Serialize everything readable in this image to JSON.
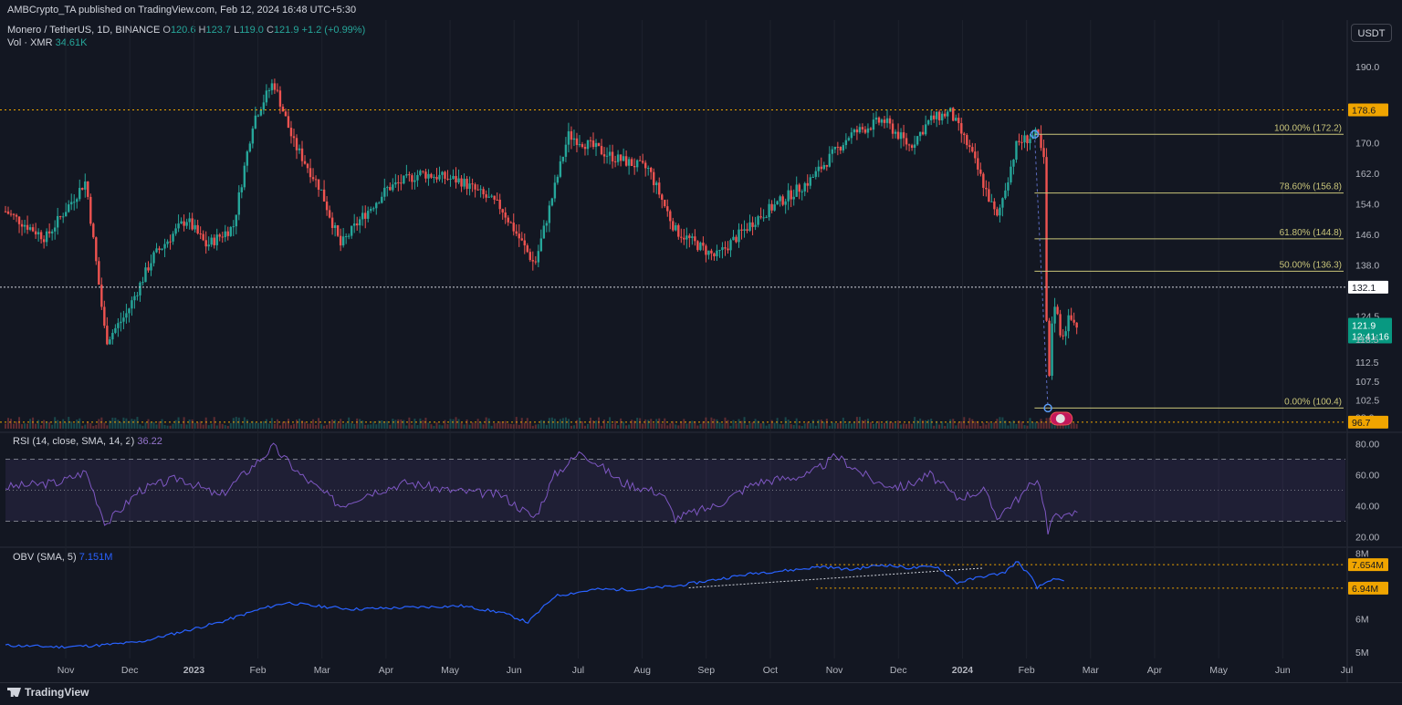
{
  "header": {
    "publisher": "AMBCrypto_TA published on TradingView.com, Feb 12, 2024 16:48 UTC+5:30"
  },
  "legend": {
    "symbol": "Monero / TetherUS, 1D, BINANCE",
    "open_label": "O",
    "open": "120.6",
    "high_label": "H",
    "high": "123.7",
    "low_label": "L",
    "low": "119.0",
    "close_label": "C",
    "close": "121.9",
    "change": "+1.2 (+0.99%)",
    "vol_label": "Vol · XMR",
    "vol_value": "34.61K"
  },
  "currency_button": "USDT",
  "rsi_legend": {
    "label": "RSI (14, close, SMA, 14, 2)",
    "value": "36.22"
  },
  "obv_legend": {
    "label": "OBV (SMA, 5)",
    "value": "7.151M"
  },
  "branding": "TradingView",
  "colors": {
    "up": "#26a69a",
    "down": "#ef5350",
    "rsi": "#7e57c2",
    "obv": "#2962ff",
    "fib": "#c9c57a",
    "level": "#f0a500",
    "bg": "#131722"
  },
  "chart_data": {
    "type": "candlestick",
    "price_axis_ticks": [
      "190.0",
      "178.6",
      "170.0",
      "162.0",
      "154.0",
      "146.0",
      "138.0",
      "132.1",
      "124.5",
      "121.9",
      "118.5",
      "112.5",
      "107.5",
      "102.5",
      "98.0",
      "96.7"
    ],
    "price_ylim": [
      95,
      195
    ],
    "x_ticks": [
      "Nov",
      "Dec",
      "2023",
      "Feb",
      "Mar",
      "Apr",
      "May",
      "Jun",
      "Jul",
      "Aug",
      "Sep",
      "Oct",
      "Nov",
      "Dec",
      "2024",
      "Feb",
      "Mar",
      "Apr",
      "May",
      "Jun",
      "Jul"
    ],
    "price_path": [
      [
        0,
        152
      ],
      [
        0.03,
        145
      ],
      [
        0.06,
        160
      ],
      [
        0.075,
        118
      ],
      [
        0.09,
        125
      ],
      [
        0.11,
        140
      ],
      [
        0.135,
        150
      ],
      [
        0.15,
        143
      ],
      [
        0.17,
        148
      ],
      [
        0.185,
        176
      ],
      [
        0.2,
        186
      ],
      [
        0.215,
        170
      ],
      [
        0.235,
        158
      ],
      [
        0.25,
        143
      ],
      [
        0.265,
        150
      ],
      [
        0.285,
        158
      ],
      [
        0.31,
        162
      ],
      [
        0.34,
        160
      ],
      [
        0.37,
        153
      ],
      [
        0.395,
        138
      ],
      [
        0.42,
        172
      ],
      [
        0.455,
        166
      ],
      [
        0.48,
        163
      ],
      [
        0.5,
        147
      ],
      [
        0.53,
        140
      ],
      [
        0.56,
        150
      ],
      [
        0.6,
        160
      ],
      [
        0.63,
        172
      ],
      [
        0.655,
        176
      ],
      [
        0.675,
        169
      ],
      [
        0.69,
        176
      ],
      [
        0.705,
        178
      ],
      [
        0.72,
        168
      ],
      [
        0.74,
        150
      ],
      [
        0.755,
        170
      ],
      [
        0.77,
        172.2
      ],
      [
        0.775,
        165
      ],
      [
        0.778,
        100.4
      ],
      [
        0.782,
        130
      ],
      [
        0.788,
        119
      ],
      [
        0.794,
        124
      ],
      [
        0.8,
        121.9
      ]
    ],
    "fib_levels": [
      {
        "label": "100.00% (172.2)",
        "value": 172.2
      },
      {
        "label": "78.60% (156.8)",
        "value": 156.8
      },
      {
        "label": "61.80% (144.8)",
        "value": 144.8
      },
      {
        "label": "50.00% (136.3)",
        "value": 136.3
      },
      {
        "label": "0.00% (100.4)",
        "value": 100.4
      }
    ],
    "horizontal_levels": [
      {
        "label": "178.6",
        "value": 178.6
      },
      {
        "label": "132.1",
        "value": 132.1
      },
      {
        "label": "96.7",
        "value": 96.7
      }
    ],
    "last_price": {
      "value": "121.9",
      "countdown": "12:41:16"
    },
    "rsi": {
      "ticks": [
        "80.00",
        "60.00",
        "40.00",
        "20.00"
      ],
      "ylim": [
        15,
        85
      ],
      "bands": [
        70,
        50,
        30
      ],
      "path": [
        [
          0,
          52
        ],
        [
          0.04,
          55
        ],
        [
          0.06,
          62
        ],
        [
          0.075,
          28
        ],
        [
          0.1,
          50
        ],
        [
          0.13,
          58
        ],
        [
          0.16,
          46
        ],
        [
          0.19,
          70
        ],
        [
          0.2,
          78
        ],
        [
          0.22,
          60
        ],
        [
          0.25,
          40
        ],
        [
          0.27,
          48
        ],
        [
          0.3,
          55
        ],
        [
          0.33,
          50
        ],
        [
          0.37,
          47
        ],
        [
          0.395,
          32
        ],
        [
          0.41,
          60
        ],
        [
          0.43,
          75
        ],
        [
          0.46,
          55
        ],
        [
          0.49,
          48
        ],
        [
          0.5,
          32
        ],
        [
          0.53,
          40
        ],
        [
          0.56,
          55
        ],
        [
          0.6,
          60
        ],
        [
          0.62,
          72
        ],
        [
          0.65,
          55
        ],
        [
          0.67,
          52
        ],
        [
          0.69,
          60
        ],
        [
          0.71,
          45
        ],
        [
          0.73,
          50
        ],
        [
          0.74,
          33
        ],
        [
          0.76,
          48
        ],
        [
          0.77,
          58
        ],
        [
          0.775,
          42
        ],
        [
          0.778,
          22
        ],
        [
          0.785,
          38
        ],
        [
          0.79,
          32
        ],
        [
          0.8,
          36.22
        ]
      ]
    },
    "obv": {
      "ticks": [
        "8M",
        "7.654M",
        "6.94M",
        "6M",
        "5M"
      ],
      "ylim": [
        4.8,
        8.1
      ],
      "levels": [
        {
          "label": "7.654M",
          "value": 7.654
        },
        {
          "label": "6.94M",
          "value": 6.94
        }
      ],
      "path": [
        [
          0,
          5.2
        ],
        [
          0.04,
          5.15
        ],
        [
          0.07,
          5.2
        ],
        [
          0.1,
          5.3
        ],
        [
          0.13,
          5.6
        ],
        [
          0.16,
          5.9
        ],
        [
          0.19,
          6.3
        ],
        [
          0.21,
          6.5
        ],
        [
          0.23,
          6.4
        ],
        [
          0.26,
          6.3
        ],
        [
          0.3,
          6.35
        ],
        [
          0.34,
          6.4
        ],
        [
          0.37,
          6.2
        ],
        [
          0.39,
          5.9
        ],
        [
          0.41,
          6.7
        ],
        [
          0.44,
          6.9
        ],
        [
          0.47,
          6.9
        ],
        [
          0.5,
          7.0
        ],
        [
          0.53,
          7.2
        ],
        [
          0.56,
          7.4
        ],
        [
          0.59,
          7.5
        ],
        [
          0.61,
          7.6
        ],
        [
          0.63,
          7.5
        ],
        [
          0.655,
          7.65
        ],
        [
          0.675,
          7.55
        ],
        [
          0.695,
          7.6
        ],
        [
          0.71,
          7.1
        ],
        [
          0.73,
          7.3
        ],
        [
          0.745,
          7.4
        ],
        [
          0.755,
          7.75
        ],
        [
          0.765,
          7.3
        ],
        [
          0.77,
          6.94
        ],
        [
          0.78,
          7.2
        ],
        [
          0.79,
          7.151
        ]
      ]
    }
  }
}
